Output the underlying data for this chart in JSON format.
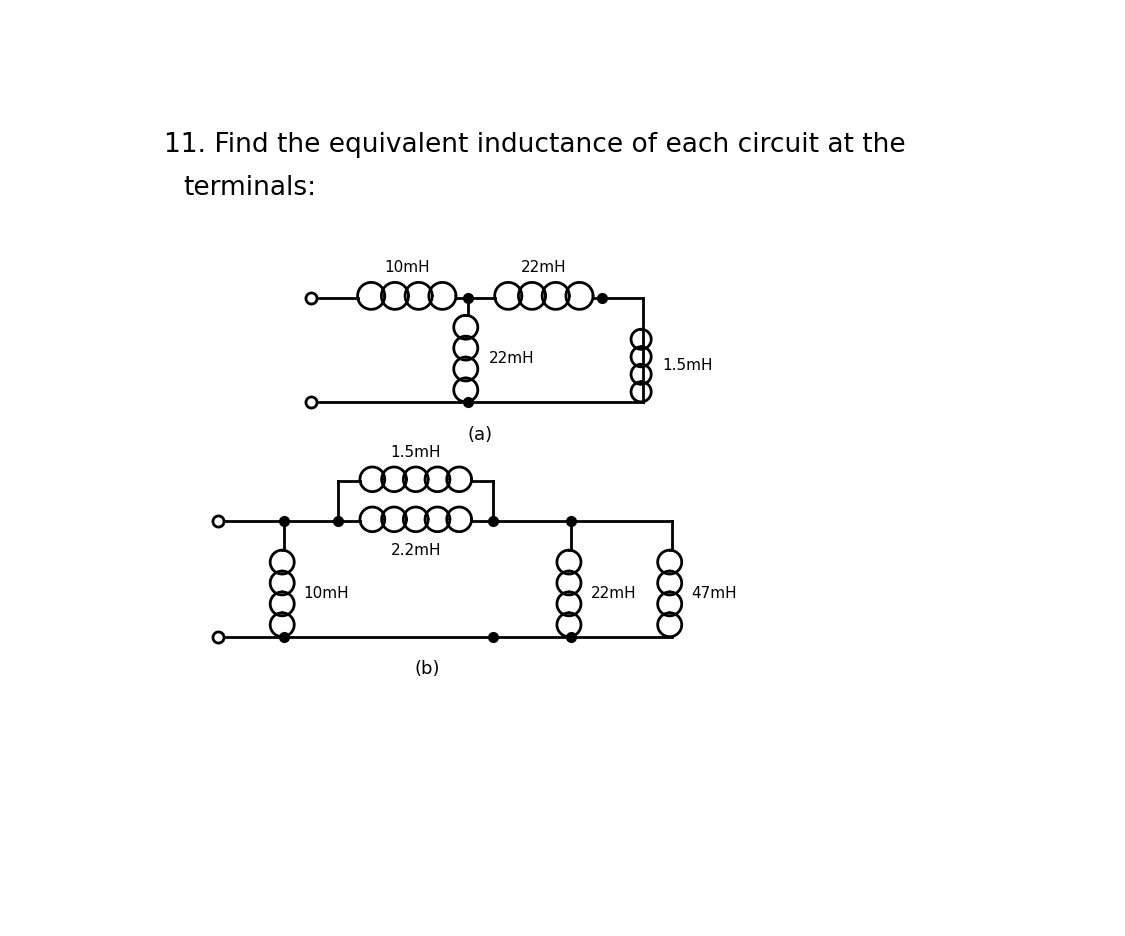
{
  "title_line1": "11. Find the equivalent inductance of each circuit at the",
  "title_line2": "terminals:",
  "bg_color": "#ffffff",
  "line_color": "#000000",
  "label_a": "(a)",
  "label_b": "(b)",
  "circuit_a": {
    "inductor_10mH_label": "10mH",
    "inductor_22mH_top_label": "22mH",
    "inductor_22mH_vert_label": "22mH",
    "inductor_15mH_label": "1.5mH"
  },
  "circuit_b": {
    "inductor_15mH_label": "1.5mH",
    "inductor_22mH_label": "2.2mH",
    "inductor_10mH_label": "10mH",
    "inductor_22mH2_label": "22mH",
    "inductor_47mH_label": "47mH"
  },
  "font_title": 19,
  "font_label": 11,
  "font_sublabel": 13,
  "lw": 2.0,
  "dot_ms": 7,
  "terminal_ms": 8
}
